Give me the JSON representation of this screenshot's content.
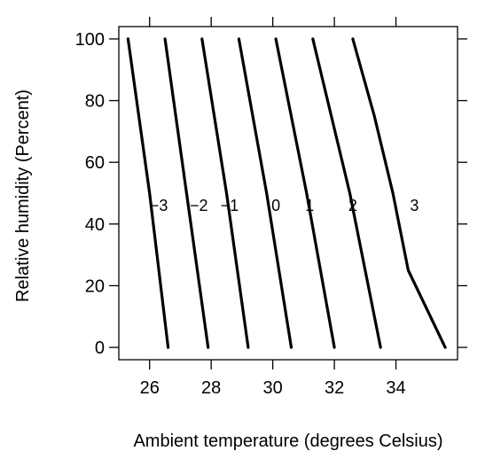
{
  "chart_data": {
    "type": "line",
    "xlabel": "Ambient temperature (degrees Celsius)",
    "ylabel": "Relative humidity (Percent)",
    "xlim": [
      25.0,
      36.0
    ],
    "ylim": [
      -4,
      104
    ],
    "x_ticks": [
      26,
      28,
      30,
      32,
      34
    ],
    "y_ticks": [
      0,
      20,
      40,
      60,
      80,
      100
    ],
    "grid": false,
    "series": [
      {
        "name": "−3",
        "points": [
          [
            26.6,
            0
          ],
          [
            26.0,
            50
          ],
          [
            25.3,
            100
          ]
        ]
      },
      {
        "name": "−2",
        "points": [
          [
            27.9,
            0
          ],
          [
            27.2,
            50
          ],
          [
            26.5,
            100
          ]
        ]
      },
      {
        "name": "−1",
        "points": [
          [
            29.2,
            0
          ],
          [
            28.5,
            50
          ],
          [
            27.7,
            100
          ]
        ]
      },
      {
        "name": "0",
        "points": [
          [
            30.6,
            0
          ],
          [
            29.8,
            50
          ],
          [
            28.9,
            100
          ]
        ]
      },
      {
        "name": "1",
        "points": [
          [
            32.0,
            0
          ],
          [
            31.1,
            50
          ],
          [
            30.1,
            100
          ]
        ]
      },
      {
        "name": "2",
        "points": [
          [
            33.5,
            0
          ],
          [
            32.5,
            50
          ],
          [
            31.3,
            100
          ]
        ]
      },
      {
        "name": "3",
        "points": [
          [
            35.6,
            0
          ],
          [
            34.4,
            25
          ],
          [
            33.9,
            50
          ],
          [
            33.3,
            75
          ],
          [
            32.6,
            100
          ]
        ]
      }
    ],
    "curve_labels": [
      {
        "text": "−3",
        "x": 26.3,
        "y": 46
      },
      {
        "text": "−2",
        "x": 27.6,
        "y": 46
      },
      {
        "text": "−1",
        "x": 28.6,
        "y": 46
      },
      {
        "text": "0",
        "x": 30.1,
        "y": 46
      },
      {
        "text": "1",
        "x": 31.2,
        "y": 46
      },
      {
        "text": "2",
        "x": 32.6,
        "y": 46
      },
      {
        "text": "3",
        "x": 34.6,
        "y": 46
      }
    ]
  }
}
